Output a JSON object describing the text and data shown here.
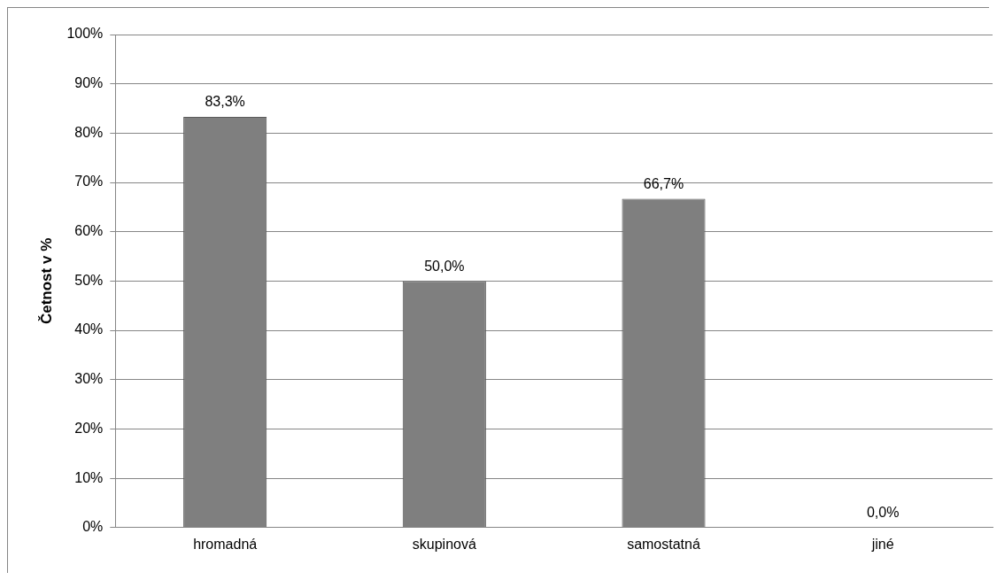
{
  "chart_data": {
    "type": "bar",
    "ylabel": "Četnost v %",
    "categories": [
      "hromadná",
      "skupinová",
      "samostatná",
      "jiné"
    ],
    "values": [
      83.3,
      50.0,
      66.7,
      0.0
    ],
    "color": "#7f7f7f",
    "value_labels": [
      "83,3%",
      "50,0%",
      "66,7%",
      "0,0%"
    ],
    "ylim": [
      0,
      100
    ],
    "yticks": [
      {
        "value": 0,
        "label": "0%"
      },
      {
        "value": 10,
        "label": "10%"
      },
      {
        "value": 20,
        "label": "20%"
      },
      {
        "value": 30,
        "label": "30%"
      },
      {
        "value": 40,
        "label": "40%"
      },
      {
        "value": 50,
        "label": "50%"
      },
      {
        "value": 60,
        "label": "60%"
      },
      {
        "value": 70,
        "label": "70%"
      },
      {
        "value": 80,
        "label": "80%"
      },
      {
        "value": 90,
        "label": "90%"
      },
      {
        "value": 100,
        "label": "100%"
      }
    ],
    "grid": "y",
    "legend": false
  }
}
